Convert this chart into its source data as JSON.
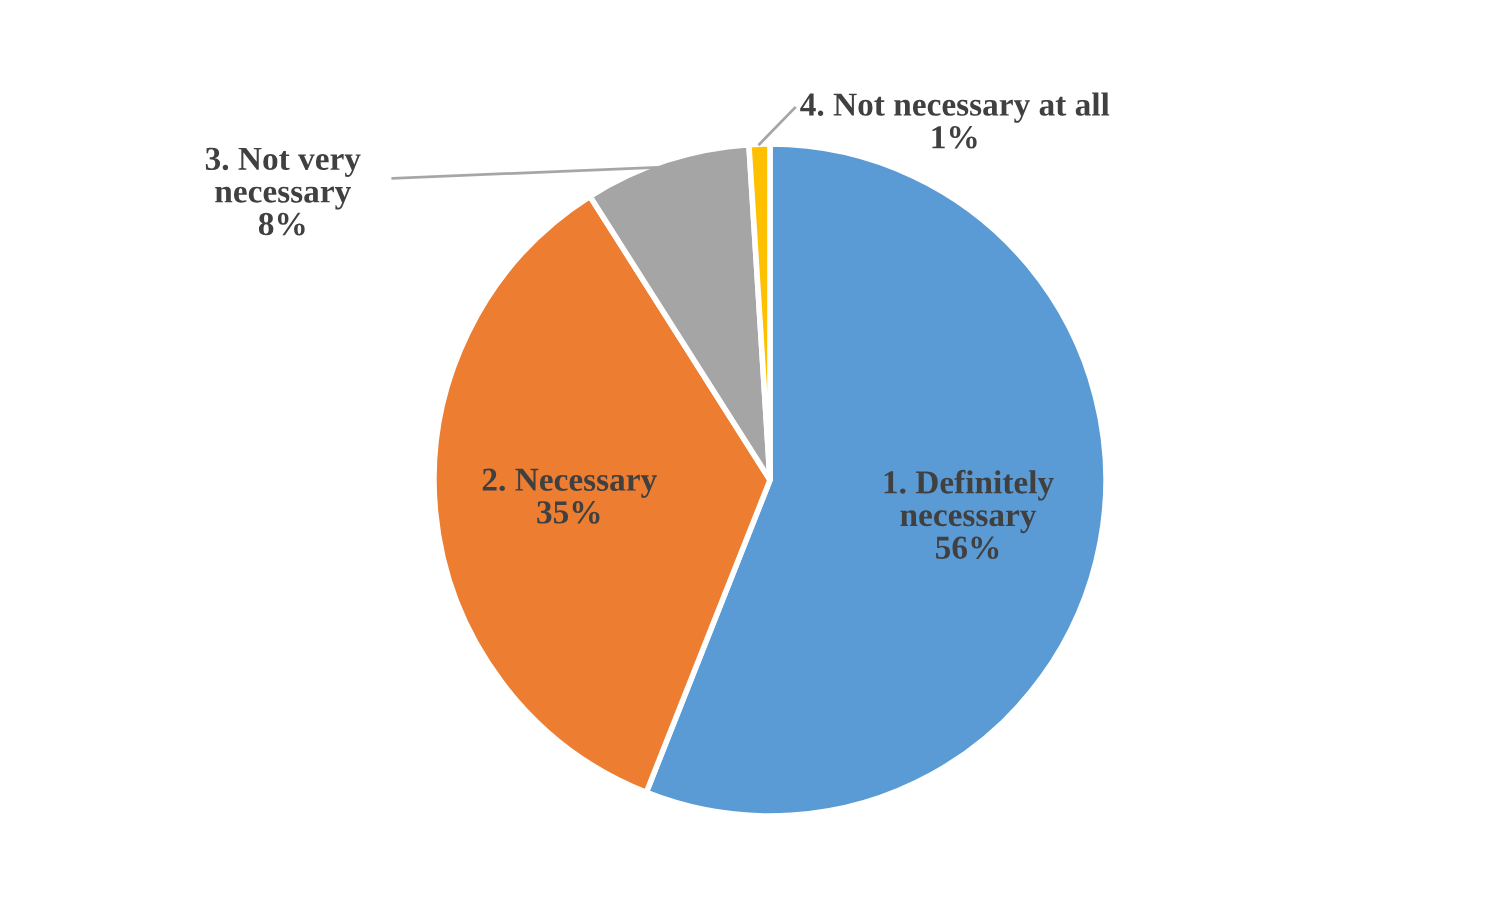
{
  "chart_data": {
    "type": "pie",
    "categories": [
      "1. Definitely\nnecessary",
      "2. Necessary",
      "3. Not very\nnecessary",
      "4. Not necessary at all"
    ],
    "values": [
      56,
      35,
      8,
      1
    ],
    "value_labels": [
      "56%",
      "35%",
      "8%",
      "1%"
    ],
    "colors": [
      "#5b9bd5",
      "#ed7d31",
      "#a5a5a5",
      "#ffc000"
    ]
  }
}
